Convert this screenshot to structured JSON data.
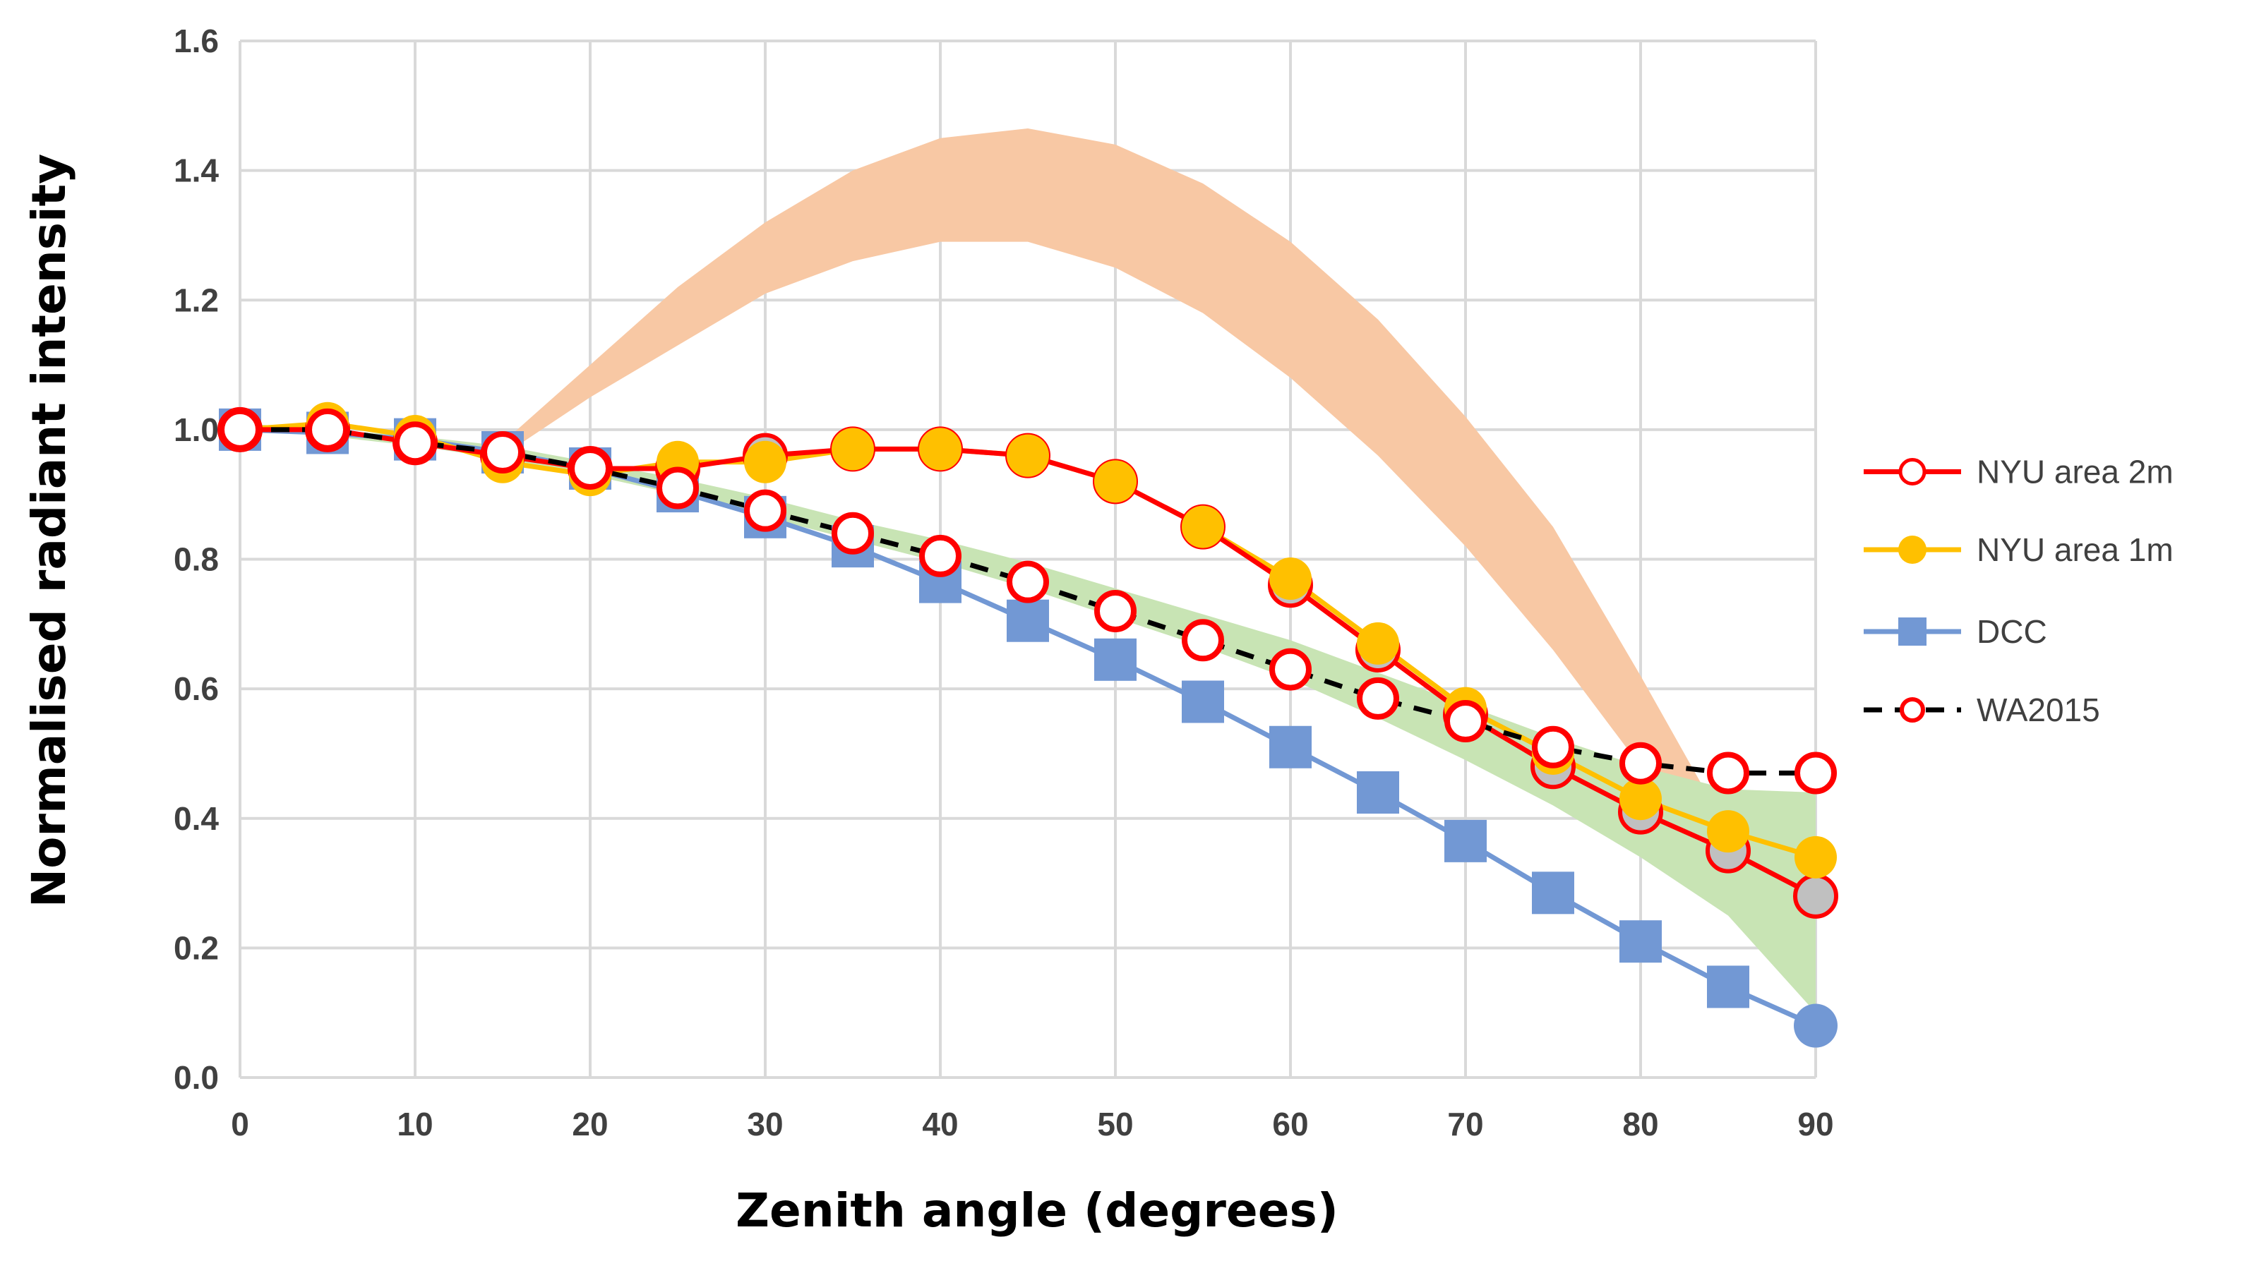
{
  "chart_data": {
    "type": "line",
    "title": "",
    "xlabel": "Zenith angle (degrees)",
    "ylabel": "Normalised radiant intensity",
    "xlim": [
      0,
      90
    ],
    "ylim": [
      0,
      1.6
    ],
    "x_ticks": [
      "0",
      "10",
      "20",
      "30",
      "40",
      "50",
      "60",
      "70",
      "80",
      "90"
    ],
    "y_ticks": [
      "0.0",
      "0.2",
      "0.4",
      "0.6",
      "0.8",
      "1.0",
      "1.2",
      "1.4",
      "1.6"
    ],
    "grid": true,
    "legend_position": "right",
    "x": [
      0,
      5,
      10,
      15,
      20,
      25,
      30,
      35,
      40,
      45,
      50,
      55,
      60,
      65,
      70,
      75,
      80,
      85,
      90
    ],
    "series": [
      {
        "name": "NYU area 2m",
        "color": "#ff0000",
        "marker_fill": "#c0c0c0",
        "values": [
          1.0,
          1.0,
          0.98,
          0.96,
          0.94,
          0.94,
          0.96,
          0.97,
          0.97,
          0.96,
          0.92,
          0.85,
          0.76,
          0.66,
          0.56,
          0.48,
          0.41,
          0.35,
          0.28
        ]
      },
      {
        "name": "NYU area 1m",
        "color": "#ffc000",
        "marker_fill": "#ffc000",
        "values": [
          1.0,
          1.01,
          0.99,
          0.95,
          0.93,
          0.95,
          0.95,
          0.97,
          0.97,
          0.96,
          0.92,
          0.85,
          0.77,
          0.67,
          0.57,
          0.5,
          0.43,
          0.38,
          0.34
        ]
      },
      {
        "name": "DCC",
        "color": "#7298d4",
        "values": [
          1.0,
          0.995,
          0.985,
          0.965,
          0.94,
          0.905,
          0.865,
          0.82,
          0.765,
          0.705,
          0.645,
          0.58,
          0.51,
          0.44,
          0.365,
          0.285,
          0.21,
          0.14,
          0.08
        ]
      },
      {
        "name": "WA2015",
        "color": "#000000",
        "marker_edge": "#ff0000",
        "values": [
          1.0,
          1.0,
          0.98,
          0.965,
          0.94,
          0.91,
          0.875,
          0.84,
          0.805,
          0.765,
          0.72,
          0.675,
          0.63,
          0.585,
          0.55,
          0.51,
          0.485,
          0.47,
          0.47
        ]
      }
    ],
    "bands": [
      {
        "name": "orange band",
        "color": "#f8c8a4",
        "x": [
          15,
          20,
          25,
          30,
          35,
          40,
          45,
          50,
          55,
          60,
          65,
          70,
          75,
          80,
          85,
          90
        ],
        "lower": [
          0.96,
          1.05,
          1.13,
          1.21,
          1.26,
          1.29,
          1.29,
          1.25,
          1.18,
          1.08,
          0.96,
          0.82,
          0.66,
          0.48,
          0.3,
          0.1
        ],
        "upper": [
          0.98,
          1.1,
          1.22,
          1.32,
          1.4,
          1.45,
          1.465,
          1.44,
          1.38,
          1.29,
          1.17,
          1.02,
          0.85,
          0.62,
          0.38,
          0.1
        ]
      },
      {
        "name": "green band",
        "color": "#c8e4b4",
        "x": [
          0,
          5,
          10,
          15,
          20,
          25,
          30,
          35,
          40,
          45,
          50,
          55,
          60,
          65,
          70,
          75,
          80,
          85,
          90
        ],
        "lower": [
          1.0,
          0.99,
          0.975,
          0.955,
          0.93,
          0.9,
          0.865,
          0.83,
          0.795,
          0.755,
          0.71,
          0.665,
          0.615,
          0.555,
          0.49,
          0.42,
          0.34,
          0.25,
          0.1
        ],
        "upper": [
          1.01,
          1.0,
          0.99,
          0.975,
          0.95,
          0.925,
          0.895,
          0.86,
          0.83,
          0.795,
          0.755,
          0.715,
          0.675,
          0.625,
          0.575,
          0.525,
          0.48,
          0.445,
          0.44
        ]
      }
    ]
  }
}
